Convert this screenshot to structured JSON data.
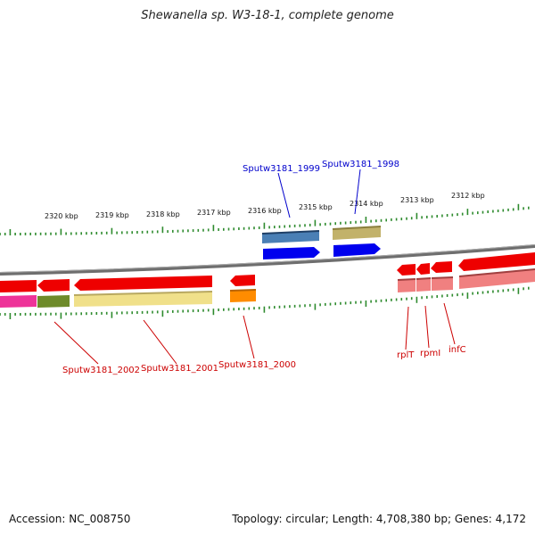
{
  "title": "Shewanella sp. W3-18-1, complete genome",
  "kbp_labels": [
    "2320 kbp",
    "2319 kbp",
    "2318 kbp",
    "2317 kbp",
    "2316 kbp",
    "2315 kbp",
    "2314 kbp",
    "2313 kbp",
    "2312 kbp"
  ],
  "gene_labels": {
    "sputw3181_1999": "Sputw3181_1999",
    "sputw3181_1998": "Sputw3181_1998",
    "sputw3181_2002": "Sputw3181_2002",
    "sputw3181_2001": "Sputw3181_2001",
    "sputw3181_2000": "Sputw3181_2000",
    "rplT": "rplT",
    "rpmI": "rpmI",
    "infC": "infC"
  },
  "colors": {
    "forward_label": "#0000cc",
    "reverse_label": "#cc0000",
    "tick": "#2e8b2e",
    "backbone": "#808080"
  },
  "footer": {
    "accession": "Accession: NC_008750",
    "summary": "Topology: circular; Length: 4,708,380 bp; Genes: 4,172"
  }
}
